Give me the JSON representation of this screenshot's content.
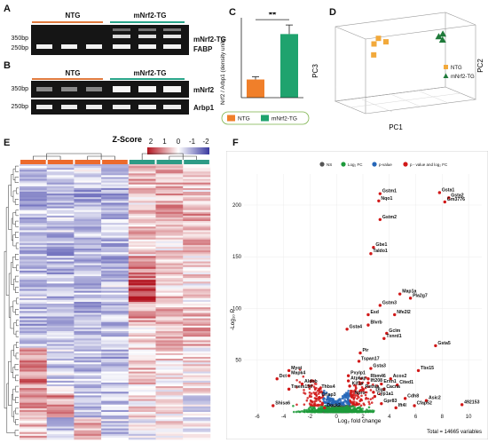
{
  "panels": {
    "a": "A",
    "b": "B",
    "c": "C",
    "d": "D",
    "e": "E",
    "f": "F"
  },
  "gelA": {
    "group_ntg": "NTG",
    "group_tg": "mNrf2-TG",
    "bp_upper": "350bp",
    "bp_lower": "250bp",
    "gene_upper": "mNrf2-TG",
    "gene_lower": "FABP",
    "ntg_color": "#e07b3f",
    "tg_color": "#2aa58a"
  },
  "gelB": {
    "group_ntg": "NTG",
    "group_tg": "mNrf2-TG",
    "row1_bp": "350bp",
    "row1_gene": "mNrf2",
    "row2_bp": "250bp",
    "row2_gene": "Arbp1"
  },
  "chart_data": [
    {
      "panel": "C",
      "type": "bar",
      "categories": [
        "NTG",
        "mNrf2-TG"
      ],
      "values": [
        1.0,
        3.5
      ],
      "errors": [
        0.15,
        0.5
      ],
      "colors": [
        "#f07f2a",
        "#1fa36e"
      ],
      "ylabel": "Nrf2 / Arbp1 (density units)",
      "ylim": [
        0,
        4.3
      ],
      "significance": "**",
      "legend": [
        "NTG",
        "mNrf2-TG"
      ]
    },
    {
      "panel": "D",
      "type": "scatter",
      "xlabel": "PC1",
      "ylabel": "PC3",
      "zlabel": "PC2",
      "series": [
        {
          "name": "NTG",
          "color": "#f2a93b",
          "marker": "square",
          "points": [
            [
              -10,
              -5,
              20
            ],
            [
              -8,
              -3,
              25
            ],
            [
              -6,
              -6,
              22
            ],
            [
              -9,
              0,
              12
            ]
          ]
        },
        {
          "name": "mNrf2-TG",
          "color": "#1f7a3a",
          "marker": "triangle",
          "points": [
            [
              15,
              5,
              30
            ],
            [
              17,
              8,
              28
            ],
            [
              16,
              3,
              32
            ]
          ]
        }
      ]
    },
    {
      "panel": "E",
      "type": "heatmap",
      "title": "Z-Score",
      "scale_ticks": [
        "2",
        "1",
        "0",
        "-1",
        "-2"
      ],
      "column_groups": [
        "#ec6a2c",
        "#ec6a2c",
        "#ec6a2c",
        "#ec6a2c",
        "#2e9b86",
        "#2e9b86",
        "#2e9b86"
      ],
      "low_color": "#4040a8",
      "mid_color": "#ffffff",
      "high_color": "#b31520",
      "profile": [
        [
          -0.5,
          -0.6,
          -0.4,
          -0.5,
          0.6,
          0.5,
          0.6
        ],
        [
          -0.8,
          -0.7,
          -0.9,
          -0.8,
          0.3,
          0.8,
          0.4
        ],
        [
          -0.6,
          -0.5,
          -0.7,
          -0.6,
          0.5,
          0.9,
          0.7
        ],
        [
          -0.7,
          -0.8,
          -0.6,
          -0.7,
          0.4,
          0.3,
          0.5
        ],
        [
          -0.6,
          -0.7,
          -0.7,
          -0.8,
          1.2,
          0.5,
          0.3
        ],
        [
          -0.5,
          -0.6,
          -0.6,
          -0.5,
          1.6,
          0.4,
          0.2
        ],
        [
          -0.7,
          -0.6,
          -0.8,
          -0.7,
          0.8,
          0.6,
          0.5
        ],
        [
          -0.5,
          -0.7,
          -0.6,
          -0.6,
          0.4,
          0.7,
          0.6
        ],
        [
          0.8,
          -0.5,
          -0.6,
          -0.7,
          0.5,
          0.3,
          0.2
        ],
        [
          1.0,
          -0.4,
          -0.5,
          -0.6,
          0.4,
          0.2,
          0.1
        ],
        [
          0.7,
          0.9,
          -0.5,
          -0.6,
          0.3,
          0.1,
          -0.3
        ],
        [
          0.5,
          -0.6,
          0.6,
          -0.5,
          -0.2,
          0.3,
          -0.1
        ]
      ]
    },
    {
      "panel": "F",
      "type": "scatter",
      "xlabel": "Log₂ fold change",
      "ylabel": "-Log₁₀ P",
      "xlim": [
        -7,
        11
      ],
      "ylim": [
        0,
        230
      ],
      "xticks": [
        -6,
        -4,
        -2,
        0,
        2,
        4,
        6,
        8,
        10
      ],
      "yticks": [
        50,
        100,
        150,
        200
      ],
      "legend": [
        {
          "name": "NS",
          "color": "#555555"
        },
        {
          "name": "Log₂ FC",
          "color": "#1d9a3a"
        },
        {
          "name": "p-value",
          "color": "#2566b8"
        },
        {
          "name": "p - value and log₂ FC",
          "color": "#d11818"
        }
      ],
      "total_label": "Total = 14665 variables",
      "genes": [
        {
          "name": "Gsta1",
          "x": 7.8,
          "y": 212
        },
        {
          "name": "Gsta2",
          "x": 8.5,
          "y": 207
        },
        {
          "name": "Gm3776",
          "x": 8.2,
          "y": 203
        },
        {
          "name": "Gstm1",
          "x": 3.3,
          "y": 211
        },
        {
          "name": "Nqo1",
          "x": 3.2,
          "y": 204
        },
        {
          "name": "Gstm2",
          "x": 3.3,
          "y": 186
        },
        {
          "name": "Gbe1",
          "x": 2.8,
          "y": 159
        },
        {
          "name": "Taldo1",
          "x": 2.6,
          "y": 153
        },
        {
          "name": "Map1a",
          "x": 4.8,
          "y": 114
        },
        {
          "name": "Pla2g7",
          "x": 5.6,
          "y": 110
        },
        {
          "name": "Gstm3",
          "x": 3.3,
          "y": 103
        },
        {
          "name": "Esd",
          "x": 2.4,
          "y": 94
        },
        {
          "name": "Nfe2l2",
          "x": 4.4,
          "y": 94
        },
        {
          "name": "Blvrb",
          "x": 2.4,
          "y": 84
        },
        {
          "name": "Gclm",
          "x": 3.8,
          "y": 76
        },
        {
          "name": "Gsta4",
          "x": 0.8,
          "y": 80
        },
        {
          "name": "Txnrd1",
          "x": 3.6,
          "y": 71
        },
        {
          "name": "Gsta5",
          "x": 7.5,
          "y": 64
        },
        {
          "name": "Pir",
          "x": 1.8,
          "y": 57
        },
        {
          "name": "Tspan17",
          "x": 1.7,
          "y": 49
        },
        {
          "name": "Gsta3",
          "x": 2.6,
          "y": 42
        },
        {
          "name": "Tbx15",
          "x": 6.2,
          "y": 40
        },
        {
          "name": "Pxylp1",
          "x": 0.9,
          "y": 35
        },
        {
          "name": "Rbm46",
          "x": 2.4,
          "y": 32
        },
        {
          "name": "Acox2",
          "x": 4.1,
          "y": 32
        },
        {
          "name": "Atp6ap",
          "x": 0.9,
          "y": 30
        },
        {
          "name": "Ift208",
          "x": 2.4,
          "y": 28
        },
        {
          "name": "Erxn1",
          "x": 3.4,
          "y": 27
        },
        {
          "name": "Cited1",
          "x": 4.6,
          "y": 26
        },
        {
          "name": "Kif1a",
          "x": 1.0,
          "y": 25
        },
        {
          "name": "Retnla",
          "x": 2.0,
          "y": 22
        },
        {
          "name": "Cacna",
          "x": 3.6,
          "y": 22
        },
        {
          "name": "Dlg2",
          "x": 2.8,
          "y": 19
        },
        {
          "name": "Npro",
          "x": 1.2,
          "y": 16
        },
        {
          "name": "Cyp1a1",
          "x": 2.9,
          "y": 15
        },
        {
          "name": "Cdh8",
          "x": 5.2,
          "y": 13
        },
        {
          "name": "Asic2",
          "x": 6.8,
          "y": 11
        },
        {
          "name": "492153",
          "x": 9.5,
          "y": 7
        },
        {
          "name": "Cfap52",
          "x": 5.9,
          "y": 6
        },
        {
          "name": "Gpr83",
          "x": 3.4,
          "y": 8
        },
        {
          "name": "Ift4l",
          "x": 4.5,
          "y": 4
        },
        {
          "name": "Dct",
          "x": -4.5,
          "y": 32
        },
        {
          "name": "Myot",
          "x": -3.6,
          "y": 40
        },
        {
          "name": "Mapk4",
          "x": -3.6,
          "y": 35
        },
        {
          "name": "Aldob",
          "x": -2.6,
          "y": 27
        },
        {
          "name": "Tmem150",
          "x": -3.6,
          "y": 22
        },
        {
          "name": "Thbs4",
          "x": -1.3,
          "y": 22
        },
        {
          "name": "Crisp3",
          "x": -1.3,
          "y": 14
        },
        {
          "name": "Shisa6",
          "x": -4.8,
          "y": 6
        },
        {
          "name": "Dock2",
          "x": -0.9,
          "y": 4
        }
      ]
    }
  ]
}
